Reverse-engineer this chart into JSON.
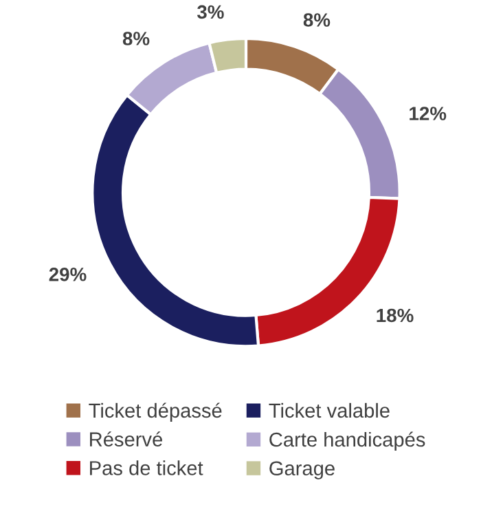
{
  "chart_data": {
    "type": "donut",
    "categories": [
      "Ticket dépassé",
      "Réservé",
      "Pas de ticket",
      "Ticket valable",
      "Carte handicapés",
      "Garage"
    ],
    "values": [
      8,
      12,
      18,
      29,
      8,
      3
    ],
    "value_labels": [
      "8%",
      "12%",
      "18%",
      "29%",
      "8%",
      "3%"
    ],
    "colors": [
      "#a0714b",
      "#9c8fbf",
      "#c0141c",
      "#1b1f5f",
      "#b3a9d1",
      "#c6c69c"
    ],
    "legend": "bottom"
  }
}
